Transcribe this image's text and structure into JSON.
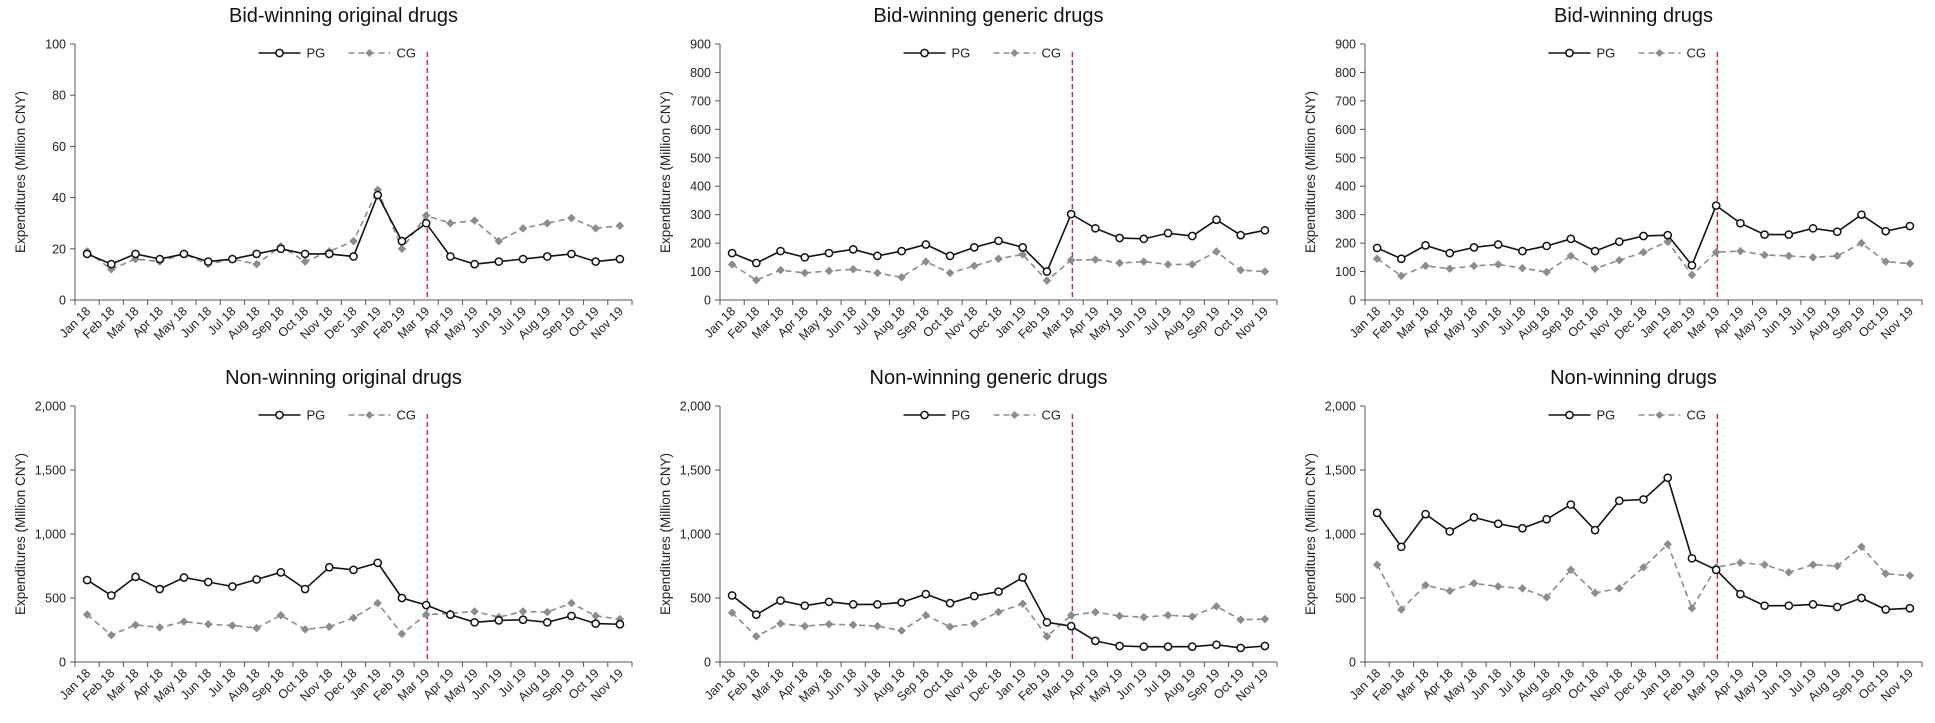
{
  "colors": {
    "pg": "#111111",
    "cg": "#8c8c8c",
    "intervention": "#d62728",
    "axis": "#555555"
  },
  "chart_data": [
    {
      "type": "line",
      "title": "Bid-winning original drugs",
      "xlabel": "",
      "ylabel": "Expenditures (Million CNY)",
      "ylim": [
        0,
        100
      ],
      "yticks": [
        0,
        20,
        40,
        60,
        80,
        100
      ],
      "ytick_labels": [
        "0",
        "20",
        "40",
        "60",
        "80",
        "100"
      ],
      "categories": [
        "Jan 18",
        "Feb 18",
        "Mar 18",
        "Apr 18",
        "May 18",
        "Jun 18",
        "Jul 18",
        "Aug 18",
        "Sep 18",
        "Oct 18",
        "Nov 18",
        "Dec 18",
        "Jan 19",
        "Feb 19",
        "Mar 19",
        "Apr 19",
        "May 19",
        "Jun 19",
        "Jul 19",
        "Aug 19",
        "Sep 19",
        "Oct 19",
        "Nov 19"
      ],
      "intervention_after_index": 14,
      "legend_position": "top-center",
      "grid": false,
      "series": [
        {
          "name": "PG",
          "style": "solid-open-circle",
          "values": [
            18,
            14,
            18,
            16,
            18,
            15,
            16,
            18,
            20,
            18,
            18,
            17,
            41,
            23,
            30,
            17,
            14,
            15,
            16,
            17,
            18,
            15,
            16
          ]
        },
        {
          "name": "CG",
          "style": "dashed-diamond",
          "values": [
            19,
            12,
            16,
            15,
            18,
            14,
            16,
            14,
            21,
            15,
            19,
            23,
            43,
            20,
            33,
            30,
            31,
            23,
            28,
            30,
            32,
            28,
            29
          ]
        }
      ]
    },
    {
      "type": "line",
      "title": "Bid-winning generic drugs",
      "xlabel": "",
      "ylabel": "Expenditures (Million CNY)",
      "ylim": [
        0,
        900
      ],
      "yticks": [
        0,
        100,
        200,
        300,
        400,
        500,
        600,
        700,
        800,
        900
      ],
      "ytick_labels": [
        "0",
        "100",
        "200",
        "300",
        "400",
        "500",
        "600",
        "700",
        "800",
        "900"
      ],
      "categories": [
        "Jan 18",
        "Feb 18",
        "Mar 18",
        "Apr 18",
        "May 18",
        "Jun 18",
        "Jul 18",
        "Aug 18",
        "Sep 18",
        "Oct 18",
        "Nov 18",
        "Dec 18",
        "Jan 19",
        "Feb 19",
        "Mar 19",
        "Apr 19",
        "May 19",
        "Jun 19",
        "Jul 19",
        "Aug 19",
        "Sep 19",
        "Oct 19",
        "Nov 19"
      ],
      "intervention_after_index": 14,
      "legend_position": "top-center",
      "grid": false,
      "series": [
        {
          "name": "PG",
          "style": "solid-open-circle",
          "values": [
            165,
            130,
            172,
            150,
            165,
            178,
            155,
            172,
            195,
            155,
            185,
            208,
            185,
            100,
            302,
            252,
            218,
            215,
            235,
            225,
            282,
            228,
            245
          ]
        },
        {
          "name": "CG",
          "style": "dashed-diamond",
          "values": [
            125,
            70,
            105,
            95,
            102,
            108,
            95,
            80,
            135,
            95,
            120,
            145,
            160,
            68,
            140,
            142,
            130,
            135,
            125,
            125,
            170,
            105,
            100
          ]
        }
      ]
    },
    {
      "type": "line",
      "title": "Bid-winning drugs",
      "xlabel": "",
      "ylabel": "Expenditures (Million CNY)",
      "ylim": [
        0,
        900
      ],
      "yticks": [
        0,
        100,
        200,
        300,
        400,
        500,
        600,
        700,
        800,
        900
      ],
      "ytick_labels": [
        "0",
        "100",
        "200",
        "300",
        "400",
        "500",
        "600",
        "700",
        "800",
        "900"
      ],
      "categories": [
        "Jan 18",
        "Feb 18",
        "Mar 18",
        "Apr 18",
        "May 18",
        "Jun 18",
        "Jul 18",
        "Aug 18",
        "Sep 18",
        "Oct 18",
        "Nov 18",
        "Dec 18",
        "Jan 19",
        "Feb 19",
        "Mar 19",
        "Apr 19",
        "May 19",
        "Jun 19",
        "Jul 19",
        "Aug 19",
        "Sep 19",
        "Oct 19",
        "Nov 19"
      ],
      "intervention_after_index": 14,
      "legend_position": "top-center",
      "grid": false,
      "series": [
        {
          "name": "PG",
          "style": "solid-open-circle",
          "values": [
            183,
            145,
            192,
            165,
            185,
            195,
            172,
            190,
            215,
            172,
            205,
            225,
            228,
            122,
            332,
            270,
            230,
            230,
            252,
            240,
            300,
            242,
            260
          ]
        },
        {
          "name": "CG",
          "style": "dashed-diamond",
          "values": [
            145,
            85,
            120,
            110,
            120,
            125,
            112,
            98,
            155,
            110,
            140,
            168,
            205,
            88,
            168,
            172,
            158,
            155,
            150,
            155,
            200,
            135,
            128
          ]
        }
      ]
    },
    {
      "type": "line",
      "title": "Non-winning original drugs",
      "xlabel": "",
      "ylabel": "Expenditures (Million CNY)",
      "ylim": [
        0,
        2000
      ],
      "yticks": [
        0,
        500,
        1000,
        1500,
        2000
      ],
      "ytick_labels": [
        "0",
        "500",
        "1,000",
        "1,500",
        "2,000"
      ],
      "categories": [
        "Jan 18",
        "Feb 18",
        "Mar 18",
        "Apr 18",
        "May 18",
        "Jun 18",
        "Jul 18",
        "Aug 18",
        "Sep 18",
        "Oct 18",
        "Nov 18",
        "Dec 18",
        "Jan 19",
        "Feb 19",
        "Mar 19",
        "Apr 19",
        "May 19",
        "Jun 19",
        "Jul 19",
        "Aug 19",
        "Sep 19",
        "Oct 19",
        "Nov 19"
      ],
      "intervention_after_index": 14,
      "legend_position": "top-center",
      "grid": false,
      "series": [
        {
          "name": "PG",
          "style": "solid-open-circle",
          "values": [
            640,
            520,
            665,
            570,
            660,
            625,
            590,
            645,
            700,
            570,
            740,
            720,
            775,
            500,
            445,
            370,
            310,
            325,
            330,
            310,
            360,
            300,
            295
          ]
        },
        {
          "name": "CG",
          "style": "dashed-diamond",
          "values": [
            370,
            210,
            290,
            270,
            315,
            295,
            285,
            265,
            365,
            255,
            275,
            345,
            460,
            220,
            370,
            380,
            395,
            350,
            395,
            390,
            460,
            360,
            335
          ]
        }
      ]
    },
    {
      "type": "line",
      "title": "Non-winning generic drugs",
      "xlabel": "",
      "ylabel": "Expenditures (Million CNY)",
      "ylim": [
        0,
        2000
      ],
      "yticks": [
        0,
        500,
        1000,
        1500,
        2000
      ],
      "ytick_labels": [
        "0",
        "500",
        "1,000",
        "1,500",
        "2,000"
      ],
      "categories": [
        "Jan 18",
        "Feb 18",
        "Mar 18",
        "Apr 18",
        "May 18",
        "Jun 18",
        "Jul 18",
        "Aug 18",
        "Sep 18",
        "Oct 18",
        "Nov 18",
        "Dec 18",
        "Jan 19",
        "Feb 19",
        "Mar 19",
        "Apr 19",
        "May 19",
        "Jun 19",
        "Jul 19",
        "Aug 19",
        "Sep 19",
        "Oct 19",
        "Nov 19"
      ],
      "intervention_after_index": 14,
      "legend_position": "top-center",
      "grid": false,
      "series": [
        {
          "name": "PG",
          "style": "solid-open-circle",
          "values": [
            520,
            370,
            480,
            440,
            470,
            450,
            450,
            465,
            530,
            460,
            515,
            550,
            660,
            310,
            280,
            165,
            125,
            120,
            120,
            120,
            135,
            110,
            125
          ]
        },
        {
          "name": "CG",
          "style": "dashed-diamond",
          "values": [
            385,
            200,
            300,
            280,
            295,
            290,
            280,
            245,
            365,
            275,
            300,
            390,
            455,
            200,
            365,
            390,
            360,
            350,
            365,
            355,
            435,
            330,
            335
          ]
        }
      ]
    },
    {
      "type": "line",
      "title": "Non-winning drugs",
      "xlabel": "",
      "ylabel": "Expenditures (Million CNY)",
      "ylim": [
        0,
        2000
      ],
      "yticks": [
        0,
        500,
        1000,
        1500,
        2000
      ],
      "ytick_labels": [
        "0",
        "500",
        "1,000",
        "1,500",
        "2,000"
      ],
      "categories": [
        "Jan 18",
        "Feb 18",
        "Mar 18",
        "Apr 18",
        "May 18",
        "Jun 18",
        "Jul 18",
        "Aug 18",
        "Sep 18",
        "Oct 18",
        "Nov 18",
        "Dec 18",
        "Jan 19",
        "Feb 19",
        "Mar 19",
        "Apr 19",
        "May 19",
        "Jun 19",
        "Jul 19",
        "Aug 19",
        "Sep 19",
        "Oct 19",
        "Nov 19"
      ],
      "intervention_after_index": 14,
      "legend_position": "top-center",
      "grid": false,
      "series": [
        {
          "name": "PG",
          "style": "solid-open-circle",
          "values": [
            1165,
            900,
            1155,
            1020,
            1130,
            1080,
            1045,
            1115,
            1230,
            1030,
            1260,
            1270,
            1440,
            810,
            720,
            530,
            440,
            440,
            450,
            430,
            500,
            410,
            420
          ]
        },
        {
          "name": "CG",
          "style": "dashed-diamond",
          "values": [
            760,
            410,
            600,
            555,
            615,
            590,
            575,
            505,
            720,
            540,
            575,
            740,
            920,
            420,
            740,
            775,
            760,
            700,
            760,
            750,
            900,
            690,
            675
          ]
        }
      ]
    }
  ]
}
